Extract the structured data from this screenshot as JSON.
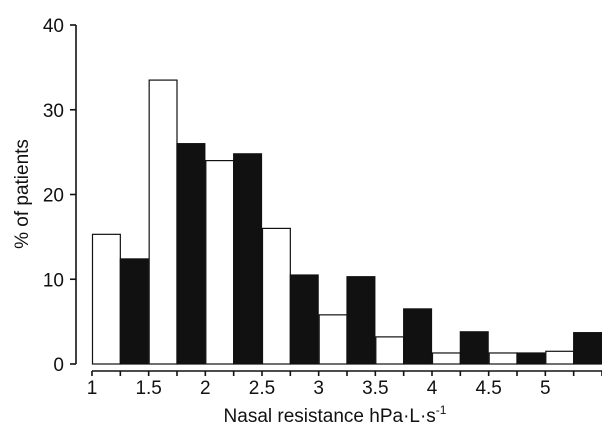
{
  "chart_data": {
    "type": "bar",
    "title": "",
    "xlabel": "Nasal resistance hPa·L·s",
    "xlabel_superscript": "-1",
    "ylabel": "% of patients",
    "ylim": [
      0,
      40
    ],
    "yticks": [
      0,
      10,
      20,
      30,
      40
    ],
    "xlim": [
      1,
      5.5
    ],
    "xticks": [
      "1",
      "1.5",
      "2",
      "2.5",
      "3",
      "3.5",
      "4",
      "4.5",
      "5"
    ],
    "bin_width": 0.5,
    "bin_starts": [
      1,
      1.5,
      2,
      2.5,
      3,
      3.5,
      4,
      4.5,
      5
    ],
    "series": [
      {
        "fill": "#ffffff",
        "values": [
          15.3,
          33.5,
          24.0,
          16.0,
          5.8,
          3.2,
          1.3,
          1.3,
          1.5
        ]
      },
      {
        "fill": "#111111",
        "values": [
          12.4,
          26.0,
          24.8,
          10.5,
          10.3,
          6.5,
          3.8,
          1.3,
          3.7
        ]
      }
    ],
    "legend": "none",
    "grid": false
  }
}
